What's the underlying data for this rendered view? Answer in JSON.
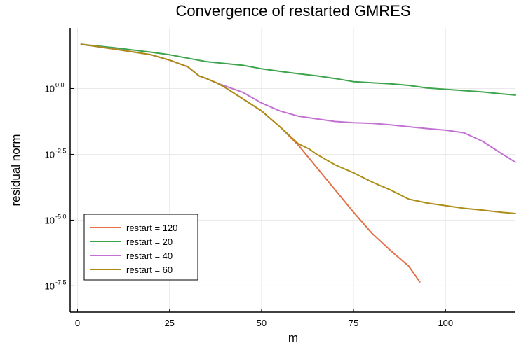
{
  "chart_data": {
    "type": "line",
    "title": "Convergence of restarted GMRES",
    "xlabel": "m",
    "ylabel": "residual norm",
    "xlim": [
      -2,
      119
    ],
    "ylim_log10": [
      -8.5,
      2.3
    ],
    "y_scale": "log10",
    "x_ticks": [
      0,
      25,
      50,
      75,
      100
    ],
    "y_ticks": [
      {
        "base": "10",
        "exp": "0.0",
        "value": 0.0
      },
      {
        "base": "10",
        "exp": "-2.5",
        "value": -2.5
      },
      {
        "base": "10",
        "exp": "-5.0",
        "value": -5.0
      },
      {
        "base": "10",
        "exp": "-7.5",
        "value": -7.5
      }
    ],
    "grid": true,
    "legend_position": "bottom-left",
    "series": [
      {
        "name": "restart = 120",
        "color": "#e26f46",
        "x": [
          1,
          10,
          20,
          25,
          30,
          33,
          35,
          38,
          40,
          45,
          50,
          55,
          60,
          65,
          70,
          75,
          80,
          85,
          90,
          93
        ],
        "log10": [
          1.68,
          1.5,
          1.28,
          1.08,
          0.82,
          0.48,
          0.38,
          0.2,
          0.05,
          -0.4,
          -0.85,
          -1.45,
          -2.15,
          -3.0,
          -3.85,
          -4.7,
          -5.5,
          -6.15,
          -6.75,
          -7.35
        ]
      },
      {
        "name": "restart = 20",
        "color": "#3da44d",
        "x": [
          1,
          10,
          20,
          25,
          30,
          35,
          40,
          45,
          50,
          55,
          60,
          65,
          70,
          75,
          80,
          85,
          90,
          95,
          100,
          105,
          110,
          115,
          119
        ],
        "log10": [
          1.68,
          1.55,
          1.38,
          1.28,
          1.15,
          1.02,
          0.95,
          0.88,
          0.75,
          0.65,
          0.56,
          0.48,
          0.38,
          0.26,
          0.22,
          0.18,
          0.12,
          0.02,
          -0.03,
          -0.08,
          -0.13,
          -0.2,
          -0.25
        ]
      },
      {
        "name": "restart = 40",
        "color": "#c271d2",
        "x": [
          1,
          10,
          20,
          25,
          30,
          33,
          35,
          38,
          40,
          45,
          50,
          55,
          60,
          65,
          70,
          75,
          80,
          85,
          90,
          95,
          100,
          105,
          110,
          115,
          119
        ],
        "log10": [
          1.68,
          1.5,
          1.28,
          1.08,
          0.82,
          0.48,
          0.38,
          0.2,
          0.1,
          -0.15,
          -0.55,
          -0.85,
          -1.05,
          -1.15,
          -1.25,
          -1.3,
          -1.32,
          -1.38,
          -1.45,
          -1.52,
          -1.58,
          -1.68,
          -2.0,
          -2.45,
          -2.8
        ]
      },
      {
        "name": "restart = 60",
        "color": "#ac8d18",
        "x": [
          1,
          10,
          20,
          25,
          30,
          33,
          35,
          38,
          40,
          45,
          50,
          55,
          60,
          63,
          65,
          70,
          75,
          80,
          85,
          90,
          95,
          100,
          105,
          110,
          115,
          119
        ],
        "log10": [
          1.68,
          1.5,
          1.28,
          1.08,
          0.82,
          0.48,
          0.38,
          0.2,
          0.05,
          -0.4,
          -0.85,
          -1.45,
          -2.1,
          -2.3,
          -2.5,
          -2.9,
          -3.2,
          -3.55,
          -3.85,
          -4.2,
          -4.35,
          -4.45,
          -4.55,
          -4.62,
          -4.7,
          -4.75
        ]
      }
    ]
  }
}
